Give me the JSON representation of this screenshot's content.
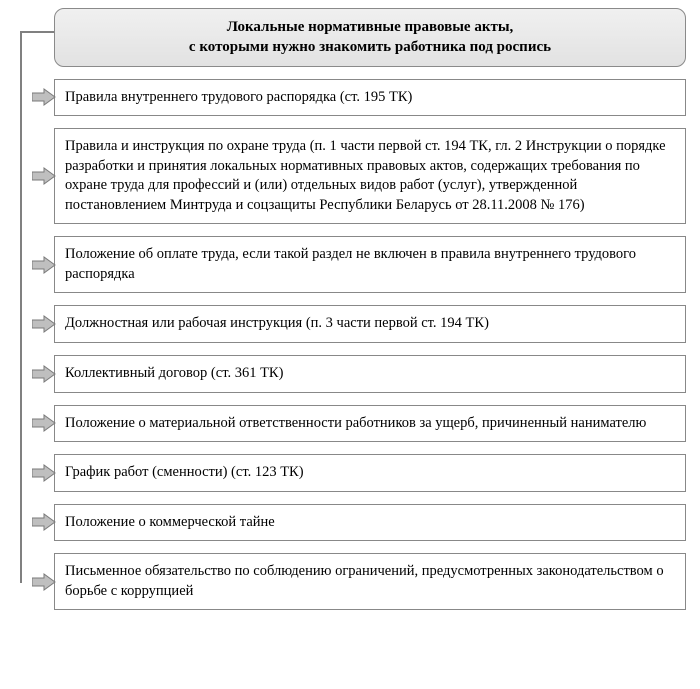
{
  "type": "flowchart",
  "header": {
    "line1": "Локальные нормативные правовые акты,",
    "line2": "с которыми нужно знакомить работника под роспись"
  },
  "items": [
    {
      "text": "Правила внутреннего трудового распорядка (ст. 195 ТК)"
    },
    {
      "text": "Правила и инструкция по охране труда (п. 1 части первой ст. 194 ТК, гл. 2 Инструкции о порядке разработки и принятия локальных нормативных правовых актов, содержащих требования по охране труда для профессий и (или) отдельных видов работ (услуг), утвержденной постановлением Минтруда и соцзащиты Республики Беларусь от 28.11.2008 № 176)"
    },
    {
      "text": "Положение об оплате труда, если такой раздел не включен в правила внутреннего трудового распорядка"
    },
    {
      "text": "Должностная или рабочая инструкция (п. 3 части первой ст. 194 ТК)"
    },
    {
      "text": "Коллективный договор (ст. 361 ТК)"
    },
    {
      "text": "Положение о материальной ответственности работников за ущерб, причиненный нанимателю"
    },
    {
      "text": "График работ (сменности) (ст. 123 ТК)"
    },
    {
      "text": "Положение о коммерческой тайне"
    },
    {
      "text": "Письменное обязательство по соблюдению ограничений, предусмотренных законодательством о борьбе с коррупцией"
    }
  ],
  "style": {
    "arrow_fill": "#bfbfbf",
    "arrow_stroke": "#7a7a7a",
    "trunk_color": "#808080",
    "header_bg_from": "#f0f0f0",
    "header_bg_to": "#e2e2e2",
    "box_border": "#888888",
    "font_family": "Times New Roman",
    "header_fontsize_pt": 11,
    "item_fontsize_pt": 11
  }
}
